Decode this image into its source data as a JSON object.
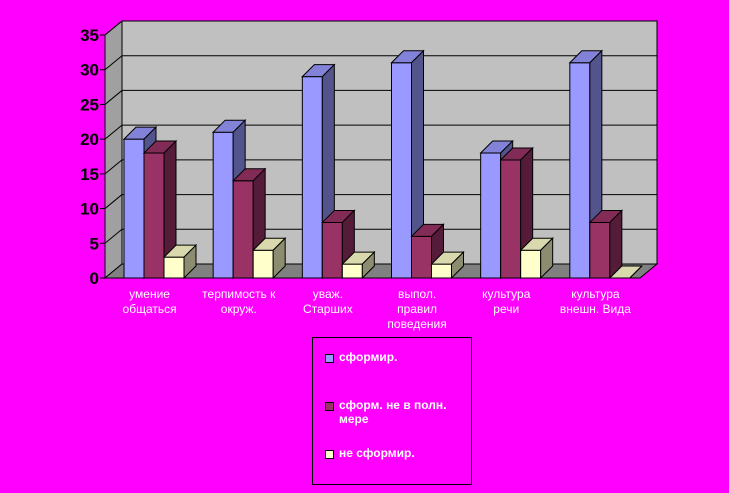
{
  "chart_data": {
    "type": "bar",
    "three_d": true,
    "categories": [
      "умение общаться",
      "терпимость к окруж.",
      "уваж. Старших",
      "выпол. правил поведения",
      "культура речи",
      "культура внешн. Вида"
    ],
    "series": [
      {
        "name": "сформир.",
        "values": [
          20,
          21,
          29,
          31,
          18,
          31
        ],
        "color": "#9999FF"
      },
      {
        "name": "сформ. не в полн. мере",
        "values": [
          18,
          14,
          8,
          6,
          17,
          8
        ],
        "color": "#993366"
      },
      {
        "name": "не сформир.",
        "values": [
          3,
          4,
          2,
          2,
          4,
          0
        ],
        "color": "#FFFFCC"
      }
    ],
    "ylim": [
      0,
      35
    ],
    "yticks": [
      0,
      5,
      10,
      15,
      20,
      25,
      30,
      35
    ],
    "grid": true,
    "wall_color": "#C0C0C0",
    "background_color": "#FF00FF",
    "legend_position": "bottom"
  }
}
